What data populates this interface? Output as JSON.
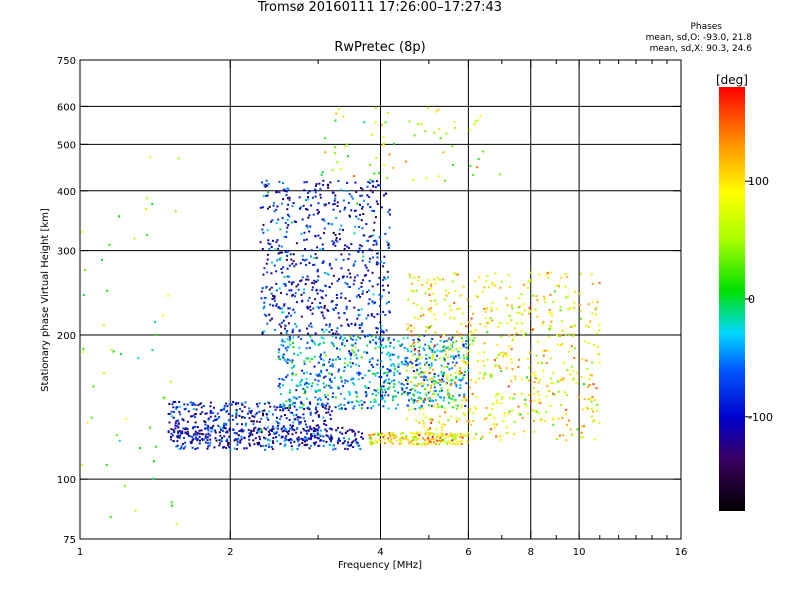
{
  "title_line1": "Tromsø 20160111 17:26:00–17:27:43",
  "title_line2": "RwPretec (8p)",
  "stats": {
    "heading": "Phases",
    "o_mode": "mean, sd,O: -93.0, 21.8",
    "x_mode": "mean, sd,X:  90.3, 24.6"
  },
  "colorbar": {
    "label": "[deg]",
    "ticks": [
      {
        "value": 100,
        "label": "100"
      },
      {
        "value": 0,
        "label": "0"
      },
      {
        "value": -100,
        "label": "-100"
      }
    ],
    "range": [
      -180,
      180
    ]
  },
  "chart_data": {
    "type": "scatter",
    "title": "Tromsø 20160111 17:26:00–17:27:43",
    "subtitle": "RwPretec (8p)",
    "xlabel": "Frequency [MHz]",
    "ylabel": "Stationary phase Virtual Height [km]",
    "x_scale": "log2",
    "y_scale": "log",
    "xlim": [
      1,
      16
    ],
    "ylim": [
      75,
      750
    ],
    "x_ticks": [
      1,
      2,
      4,
      6,
      8,
      10,
      16
    ],
    "x_tick_labels": [
      "1",
      "2",
      "4",
      "6",
      "8",
      "10",
      "16"
    ],
    "x_grid": [
      2,
      4,
      6,
      8,
      10
    ],
    "x_minor_ticks": [
      3,
      5,
      7,
      9,
      11,
      12,
      13,
      14,
      15
    ],
    "y_ticks": [
      75,
      100,
      200,
      300,
      400,
      500,
      600,
      750
    ],
    "y_tick_labels": [
      "75",
      "100",
      "200",
      "300",
      "400",
      "500",
      "600",
      "750"
    ],
    "y_grid": [
      100,
      200,
      300,
      400,
      500,
      600
    ],
    "grid": true,
    "color_scale": "phase in degrees, rainbow from black (-180) through blue (-100), cyan, green (0), yellow (100) to red (+180)",
    "point_clusters": [
      {
        "description": "O-mode F-trace base",
        "freq_range": [
          1.55,
          3.7
        ],
        "height_range": [
          115,
          128
        ],
        "mean_phase": -100
      },
      {
        "description": "O-mode lower band",
        "freq_range": [
          1.5,
          3.2
        ],
        "height_range": [
          120,
          145
        ],
        "mean_phase": -95
      },
      {
        "description": "O-mode F2 lower cusp",
        "freq_range": [
          2.3,
          4.2
        ],
        "height_range": [
          200,
          420
        ],
        "mean_phase": -90
      },
      {
        "description": "mid region mixed",
        "freq_range": [
          2.5,
          6.0
        ],
        "height_range": [
          140,
          200
        ],
        "mean_phase": -40
      },
      {
        "description": "X-mode base near 4-6 MHz",
        "freq_range": [
          3.8,
          6.0
        ],
        "height_range": [
          118,
          125
        ],
        "mean_phase": 95
      },
      {
        "description": "X-mode upper region",
        "freq_range": [
          4.5,
          11.0
        ],
        "height_range": [
          120,
          270
        ],
        "mean_phase": 90
      },
      {
        "description": "scattered high echoes",
        "freq_range": [
          3.0,
          7.0
        ],
        "height_range": [
          420,
          610
        ],
        "mean_phase": 60
      },
      {
        "description": "low-frequency scattered",
        "freq_range": [
          1.0,
          1.6
        ],
        "height_range": [
          75,
          480
        ],
        "mean_phase": 40
      }
    ]
  }
}
